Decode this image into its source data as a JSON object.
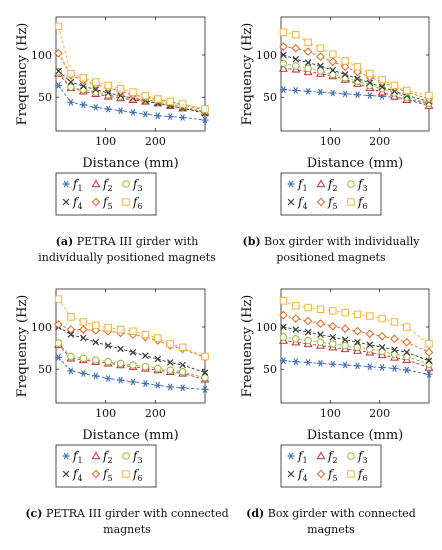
{
  "colors": {
    "f1": "#3f6fb5",
    "f2": "#c0303a",
    "f3": "#96b83c",
    "f4": "#3a3a3a",
    "f5": "#e0641e",
    "f6": "#f0b43c"
  },
  "legend": [
    {
      "key": "f1",
      "label": "f",
      "sub": "1",
      "marker": "asterisk"
    },
    {
      "key": "f2",
      "label": "f",
      "sub": "2",
      "marker": "triangle"
    },
    {
      "key": "f3",
      "label": "f",
      "sub": "3",
      "marker": "circle"
    },
    {
      "key": "f4",
      "label": "f",
      "sub": "4",
      "marker": "cross"
    },
    {
      "key": "f5",
      "label": "f",
      "sub": "5",
      "marker": "diamond"
    },
    {
      "key": "f6",
      "label": "f",
      "sub": "6",
      "marker": "square"
    }
  ],
  "chart_data": [
    {
      "id": "a",
      "type": "line",
      "caption_bold": "(a)",
      "caption": [
        " PETRA III girder with",
        "individually positioned magnets"
      ],
      "xlabel": "Distance (mm)",
      "ylabel": "Frequency (Hz)",
      "xlim": [
        0,
        300
      ],
      "ylim": [
        10,
        145
      ],
      "xticks": [
        100,
        200
      ],
      "yticks": [
        50,
        100
      ],
      "grid": false,
      "legend_position": "below",
      "x": [
        5,
        30,
        55,
        80,
        105,
        130,
        155,
        180,
        205,
        230,
        255,
        300
      ],
      "series": [
        {
          "key": "f1",
          "values": [
            64,
            44,
            41,
            38,
            36,
            34,
            32,
            30,
            28,
            27,
            26,
            23
          ]
        },
        {
          "key": "f2",
          "values": [
            78,
            61,
            57,
            54,
            51,
            49,
            47,
            45,
            43,
            40,
            37,
            32
          ]
        },
        {
          "key": "f3",
          "values": [
            80,
            62,
            59,
            56,
            53,
            51,
            49,
            47,
            45,
            42,
            39,
            33
          ]
        },
        {
          "key": "f4",
          "values": [
            81,
            68,
            63,
            59,
            55,
            52,
            49,
            46,
            43,
            40,
            37,
            31
          ]
        },
        {
          "key": "f5",
          "values": [
            102,
            76,
            70,
            65,
            61,
            57,
            53,
            50,
            47,
            44,
            41,
            35
          ]
        },
        {
          "key": "f6",
          "values": [
            134,
            78,
            73,
            68,
            64,
            60,
            56,
            52,
            48,
            45,
            42,
            36
          ]
        }
      ]
    },
    {
      "id": "b",
      "type": "line",
      "caption_bold": "(b)",
      "caption": [
        " Box girder with individually",
        "positioned magnets"
      ],
      "xlabel": "Distance (mm)",
      "ylabel": "Frequency (Hz)",
      "xlim": [
        0,
        300
      ],
      "ylim": [
        10,
        145
      ],
      "xticks": [
        100,
        200
      ],
      "yticks": [
        50,
        100
      ],
      "grid": false,
      "legend_position": "below",
      "x": [
        5,
        30,
        55,
        80,
        105,
        130,
        155,
        180,
        205,
        230,
        255,
        300
      ],
      "series": [
        {
          "key": "f1",
          "values": [
            59,
            58,
            57,
            56,
            55,
            54,
            53,
            52,
            51,
            50,
            48,
            42
          ]
        },
        {
          "key": "f2",
          "values": [
            84,
            83,
            80,
            78,
            75,
            71,
            66,
            61,
            56,
            51,
            47,
            40
          ]
        },
        {
          "key": "f3",
          "values": [
            90,
            87,
            84,
            81,
            77,
            73,
            69,
            64,
            60,
            55,
            50,
            43
          ]
        },
        {
          "key": "f4",
          "values": [
            100,
            95,
            91,
            87,
            82,
            77,
            72,
            67,
            62,
            57,
            52,
            45
          ]
        },
        {
          "key": "f5",
          "values": [
            110,
            108,
            104,
            98,
            92,
            86,
            80,
            74,
            68,
            62,
            56,
            48
          ]
        },
        {
          "key": "f6",
          "values": [
            127,
            124,
            115,
            108,
            101,
            93,
            86,
            78,
            71,
            64,
            58,
            52
          ]
        }
      ]
    },
    {
      "id": "c",
      "type": "line",
      "caption_bold": "(c)",
      "caption": [
        " PETRA III girder with connected",
        "magnets"
      ],
      "xlabel": "Distance (mm)",
      "ylabel": "Frequency (Hz)",
      "xlim": [
        0,
        300
      ],
      "ylim": [
        10,
        145
      ],
      "xticks": [
        100,
        200
      ],
      "yticks": [
        50,
        100
      ],
      "grid": false,
      "legend_position": "below",
      "x": [
        5,
        30,
        55,
        80,
        105,
        130,
        155,
        180,
        205,
        230,
        255,
        300
      ],
      "series": [
        {
          "key": "f1",
          "values": [
            64,
            48,
            45,
            42,
            39,
            37,
            35,
            33,
            31,
            29,
            28,
            26
          ]
        },
        {
          "key": "f2",
          "values": [
            79,
            63,
            61,
            59,
            57,
            55,
            53,
            51,
            49,
            47,
            45,
            38
          ]
        },
        {
          "key": "f3",
          "values": [
            81,
            65,
            63,
            61,
            59,
            57,
            55,
            53,
            51,
            49,
            47,
            40
          ]
        },
        {
          "key": "f4",
          "values": [
            100,
            91,
            87,
            82,
            78,
            74,
            70,
            66,
            62,
            58,
            55,
            46
          ]
        },
        {
          "key": "f5",
          "values": [
            103,
            97,
            97,
            96,
            95,
            93,
            91,
            88,
            84,
            78,
            74,
            64
          ]
        },
        {
          "key": "f6",
          "values": [
            133,
            112,
            106,
            102,
            99,
            97,
            95,
            91,
            87,
            80,
            76,
            65
          ]
        }
      ]
    },
    {
      "id": "d",
      "type": "line",
      "caption_bold": "(d)",
      "caption": [
        " Box girder with connected",
        "magnets"
      ],
      "xlabel": "Distance (mm)",
      "ylabel": "Frequency (Hz)",
      "xlim": [
        0,
        300
      ],
      "ylim": [
        10,
        145
      ],
      "xticks": [
        100,
        200
      ],
      "yticks": [
        50,
        100
      ],
      "grid": false,
      "legend_position": "below",
      "x": [
        5,
        30,
        55,
        80,
        105,
        130,
        155,
        180,
        205,
        230,
        255,
        300
      ],
      "series": [
        {
          "key": "f1",
          "values": [
            60,
            59,
            58,
            57,
            56,
            55,
            54,
            53,
            52,
            51,
            49,
            44
          ]
        },
        {
          "key": "f2",
          "values": [
            84,
            82,
            80,
            78,
            76,
            74,
            72,
            70,
            67,
            64,
            61,
            52
          ]
        },
        {
          "key": "f3",
          "values": [
            88,
            86,
            84,
            82,
            80,
            78,
            76,
            74,
            71,
            68,
            65,
            56
          ]
        },
        {
          "key": "f4",
          "values": [
            100,
            97,
            94,
            91,
            88,
            85,
            82,
            79,
            76,
            73,
            70,
            60
          ]
        },
        {
          "key": "f5",
          "values": [
            114,
            110,
            107,
            104,
            101,
            98,
            95,
            92,
            89,
            86,
            82,
            70
          ]
        },
        {
          "key": "f6",
          "values": [
            131,
            125,
            123,
            121,
            119,
            117,
            115,
            113,
            110,
            106,
            100,
            80
          ]
        }
      ]
    }
  ]
}
